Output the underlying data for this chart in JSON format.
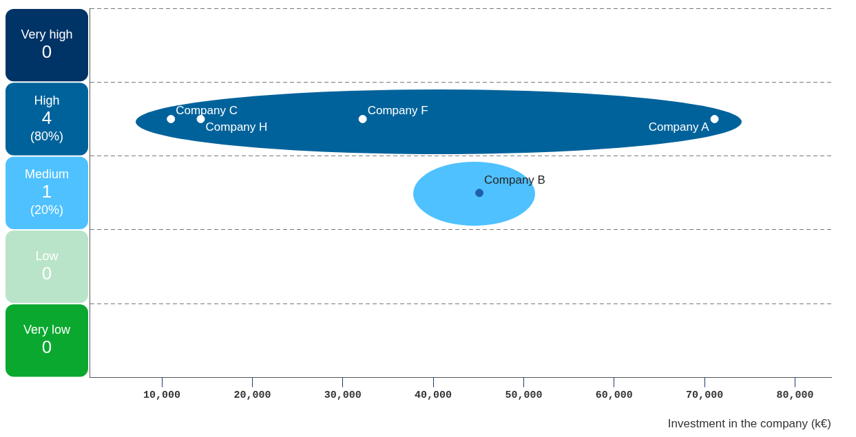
{
  "chart_data": {
    "type": "scatter",
    "orientation": "horizontal",
    "categories": [
      "Very high\n0",
      "High\n4\n(80%)",
      "Medium\n1\n(20%)",
      "Low\n0",
      "Very low\n0"
    ],
    "xlabel": "Investment in the company (k€)",
    "xlim": [
      2000,
      84000
    ],
    "xticks": [
      {
        "value": 10000,
        "label": "10,000"
      },
      {
        "value": 20000,
        "label": "20,000"
      },
      {
        "value": 30000,
        "label": "30,000"
      },
      {
        "value": 40000,
        "label": "40,000"
      },
      {
        "value": 50000,
        "label": "50,000"
      },
      {
        "value": 60000,
        "label": "60,000"
      },
      {
        "value": 70000,
        "label": "70,000"
      },
      {
        "value": 80000,
        "label": "80,000"
      }
    ],
    "grid": "y",
    "legend": false,
    "marker": "circle",
    "series": [
      {
        "name": "Company C",
        "color": "#ffffff",
        "values": [
          null,
          11000,
          null,
          null,
          null
        ]
      },
      {
        "name": "Company H",
        "color": "#ffffff",
        "values": [
          null,
          14300,
          null,
          null,
          null
        ]
      },
      {
        "name": "Company F",
        "color": "#ffffff",
        "values": [
          null,
          32200,
          null,
          null,
          null
        ]
      },
      {
        "name": "Company A",
        "color": "#ffffff",
        "values": [
          null,
          71100,
          null,
          null,
          null
        ]
      },
      {
        "name": "Company B",
        "color": "#1f5fa8",
        "values": [
          null,
          null,
          45100,
          null,
          null
        ]
      }
    ]
  }
}
